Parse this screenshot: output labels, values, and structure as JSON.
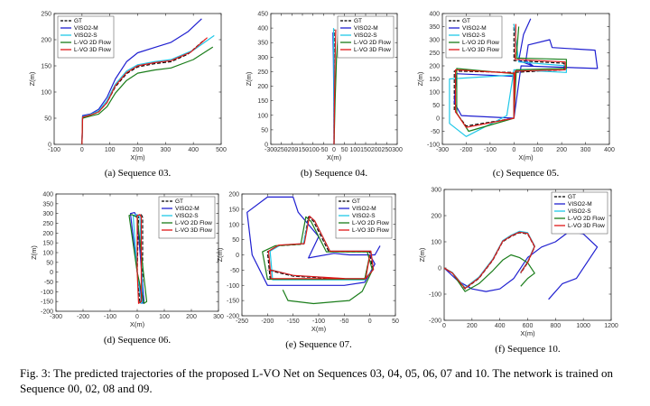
{
  "caption": "Fig. 3: The predicted trajectories of the proposed L-VO Net on Sequences 03, 04, 05, 06, 07 and 10. The network is trained on Sequence 00, 02, 08 and 09.",
  "colors": {
    "GT": "#000000",
    "VISO2-M": "#1f1fd0",
    "VISO2-S": "#20c8e8",
    "L-VO 2D Flow": "#1a7d1a",
    "L-VO 3D Flow": "#e01818"
  },
  "chart_data": [
    {
      "type": "line",
      "subcaption": "(a) Sequence 03.",
      "xlabel": "X(m)",
      "ylabel": "Z(m)",
      "xlim": [
        -100,
        500
      ],
      "ylim": [
        0,
        250
      ],
      "xticks": [
        -100,
        0,
        100,
        200,
        300,
        400,
        500
      ],
      "yticks": [
        0,
        50,
        100,
        150,
        200,
        250
      ],
      "legend_position": "top-left",
      "series": [
        {
          "name": "GT",
          "x": [
            0,
            2,
            30,
            60,
            90,
            120,
            160,
            200,
            260,
            320,
            380,
            440
          ],
          "y": [
            0,
            52,
            56,
            62,
            80,
            110,
            135,
            148,
            154,
            158,
            172,
            200
          ]
        },
        {
          "name": "VISO2-M",
          "x": [
            0,
            2,
            30,
            60,
            90,
            120,
            160,
            200,
            260,
            320,
            380,
            430
          ],
          "y": [
            0,
            55,
            58,
            67,
            90,
            125,
            158,
            175,
            185,
            195,
            215,
            240
          ]
        },
        {
          "name": "VISO2-S",
          "x": [
            0,
            2,
            30,
            60,
            90,
            120,
            160,
            200,
            260,
            320,
            400,
            475
          ],
          "y": [
            0,
            53,
            57,
            64,
            84,
            115,
            140,
            152,
            158,
            162,
            180,
            208
          ]
        },
        {
          "name": "L-VO 2D Flow",
          "x": [
            0,
            2,
            30,
            60,
            90,
            120,
            160,
            200,
            260,
            320,
            400,
            470
          ],
          "y": [
            0,
            50,
            54,
            58,
            72,
            98,
            122,
            136,
            142,
            146,
            162,
            186
          ]
        },
        {
          "name": "L-VO 3D Flow",
          "x": [
            0,
            2,
            30,
            60,
            90,
            120,
            160,
            200,
            260,
            320,
            390,
            450
          ],
          "y": [
            0,
            52,
            56,
            62,
            80,
            112,
            137,
            150,
            156,
            160,
            176,
            204
          ]
        }
      ]
    },
    {
      "type": "line",
      "subcaption": "(b) Sequence 04.",
      "xlabel": "X(m)",
      "ylabel": "Z(m)",
      "xlim": [
        -300,
        300
      ],
      "ylim": [
        0,
        450
      ],
      "xticks": [
        -300,
        -250,
        -200,
        -150,
        -100,
        -50,
        0,
        50,
        100,
        150,
        200,
        250,
        300
      ],
      "yticks": [
        0,
        50,
        100,
        150,
        200,
        250,
        300,
        350,
        400,
        450
      ],
      "legend_position": "top-right",
      "series": [
        {
          "name": "GT",
          "x": [
            0,
            0,
            1,
            1
          ],
          "y": [
            0,
            150,
            300,
            395
          ]
        },
        {
          "name": "VISO2-M",
          "x": [
            0,
            -1,
            -3,
            -5
          ],
          "y": [
            0,
            150,
            300,
            385
          ]
        },
        {
          "name": "VISO2-S",
          "x": [
            0,
            0,
            -1,
            -2
          ],
          "y": [
            0,
            150,
            300,
            400
          ]
        },
        {
          "name": "L-VO 2D Flow",
          "x": [
            0,
            5,
            12,
            20
          ],
          "y": [
            0,
            150,
            300,
            385
          ]
        },
        {
          "name": "L-VO 3D Flow",
          "x": [
            0,
            2,
            5,
            8
          ],
          "y": [
            0,
            150,
            300,
            395
          ]
        }
      ]
    },
    {
      "type": "line",
      "subcaption": "(c) Sequence 05.",
      "xlabel": "X(m)",
      "ylabel": "Z(m)",
      "xlim": [
        -300,
        400
      ],
      "ylim": [
        -100,
        400
      ],
      "xticks": [
        -300,
        -200,
        -100,
        0,
        100,
        200,
        300,
        400
      ],
      "yticks": [
        -100,
        -50,
        0,
        50,
        100,
        150,
        200,
        250,
        300,
        350,
        400
      ],
      "legend_position": "top-left",
      "series": [
        {
          "name": "GT",
          "x": [
            0,
            0,
            -250,
            -250,
            -200,
            0,
            0,
            210,
            210,
            0,
            0
          ],
          "y": [
            0,
            175,
            180,
            30,
            -30,
            0,
            175,
            185,
            210,
            220,
            360
          ]
        },
        {
          "name": "VISO2-M",
          "x": [
            0,
            0,
            -240,
            -250,
            -220,
            0,
            30,
            350,
            340,
            160,
            150,
            60,
            50,
            80,
            20,
            40,
            70
          ],
          "y": [
            0,
            160,
            170,
            60,
            10,
            0,
            200,
            190,
            260,
            270,
            300,
            280,
            220,
            200,
            220,
            320,
            380
          ]
        },
        {
          "name": "VISO2-S",
          "x": [
            0,
            0,
            -270,
            -270,
            -200,
            -30,
            0,
            220,
            220,
            20,
            0
          ],
          "y": [
            0,
            165,
            150,
            -20,
            -70,
            10,
            185,
            175,
            200,
            215,
            360
          ]
        },
        {
          "name": "L-VO 2D Flow",
          "x": [
            0,
            0,
            -240,
            -240,
            -190,
            0,
            10,
            220,
            220,
            10,
            20
          ],
          "y": [
            0,
            170,
            190,
            20,
            -50,
            0,
            185,
            190,
            225,
            230,
            350
          ]
        },
        {
          "name": "L-VO 3D Flow",
          "x": [
            0,
            0,
            -245,
            -245,
            -200,
            0,
            5,
            215,
            215,
            5,
            8
          ],
          "y": [
            0,
            172,
            185,
            25,
            -35,
            0,
            180,
            185,
            215,
            225,
            360
          ]
        }
      ]
    },
    {
      "type": "line",
      "subcaption": "(d) Sequence 06.",
      "xlabel": "X(m)",
      "ylabel": "Z(m)",
      "xlim": [
        -300,
        300
      ],
      "ylim": [
        -200,
        400
      ],
      "xticks": [
        -300,
        -200,
        -100,
        0,
        100,
        200,
        300
      ],
      "yticks": [
        -200,
        -150,
        -100,
        -50,
        0,
        50,
        100,
        150,
        200,
        250,
        300,
        350,
        400
      ],
      "legend_position": "top-right",
      "series": [
        {
          "name": "GT",
          "x": [
            0,
            5,
            15,
            20,
            20,
            10,
            0
          ],
          "y": [
            0,
            290,
            295,
            280,
            -150,
            -160,
            0
          ]
        },
        {
          "name": "VISO2-M",
          "x": [
            0,
            -25,
            -10,
            0,
            25,
            20,
            0
          ],
          "y": [
            0,
            300,
            305,
            280,
            -150,
            -160,
            0
          ]
        },
        {
          "name": "VISO2-S",
          "x": [
            0,
            -15,
            0,
            10,
            20,
            15,
            0
          ],
          "y": [
            0,
            290,
            295,
            280,
            -150,
            -160,
            0
          ]
        },
        {
          "name": "L-VO 2D Flow",
          "x": [
            0,
            -30,
            -20,
            0,
            35,
            25,
            0
          ],
          "y": [
            0,
            290,
            295,
            280,
            -150,
            -160,
            0
          ]
        },
        {
          "name": "L-VO 3D Flow",
          "x": [
            0,
            0,
            10,
            15,
            15,
            5,
            0
          ],
          "y": [
            0,
            290,
            295,
            280,
            -150,
            -160,
            0
          ]
        }
      ]
    },
    {
      "type": "line",
      "subcaption": "(e) Sequence 07.",
      "xlabel": "X(m)",
      "ylabel": "Z(m)",
      "xlim": [
        -250,
        50
      ],
      "ylim": [
        -200,
        200
      ],
      "xticks": [
        -250,
        -200,
        -150,
        -100,
        -50,
        0,
        50
      ],
      "yticks": [
        -200,
        -150,
        -100,
        -50,
        0,
        50,
        100,
        150,
        200
      ],
      "legend_position": "top-right",
      "series": [
        {
          "name": "GT",
          "x": [
            0,
            -10,
            -195,
            -200,
            -180,
            -130,
            -120,
            -110,
            -80,
            -50,
            0,
            5,
            -10,
            -50,
            -150,
            -200
          ],
          "y": [
            0,
            -80,
            -80,
            10,
            30,
            35,
            125,
            110,
            10,
            10,
            10,
            -50,
            -80,
            -80,
            -70,
            -50
          ]
        },
        {
          "name": "VISO2-M",
          "x": [
            0,
            10,
            -10,
            -50,
            -200,
            -230,
            -240,
            -200,
            -150,
            -140,
            -100,
            -120,
            -70,
            -40,
            10,
            20
          ],
          "y": [
            0,
            -30,
            -90,
            -100,
            -100,
            0,
            140,
            190,
            190,
            140,
            60,
            -10,
            5,
            0,
            0,
            30
          ]
        },
        {
          "name": "VISO2-S",
          "x": [
            0,
            -10,
            -190,
            -195,
            -175,
            -130,
            -118,
            -108,
            -78,
            -48,
            2,
            7,
            -10,
            -50,
            -150,
            -195
          ],
          "y": [
            0,
            -82,
            -82,
            12,
            32,
            37,
            127,
            112,
            12,
            12,
            12,
            -48,
            -78,
            -78,
            -68,
            -48
          ]
        },
        {
          "name": "L-VO 2D Flow",
          "x": [
            0,
            -10,
            -200,
            -210,
            -185,
            -135,
            -125,
            -115,
            -85,
            -55,
            -5,
            5,
            -15,
            -40,
            -110,
            -160,
            -170
          ],
          "y": [
            0,
            -80,
            -80,
            10,
            30,
            35,
            125,
            110,
            10,
            10,
            10,
            -50,
            -120,
            -150,
            -160,
            -150,
            -115
          ]
        },
        {
          "name": "L-VO 3D Flow",
          "x": [
            0,
            -8,
            -193,
            -198,
            -178,
            -128,
            -118,
            -108,
            -78,
            -48,
            2,
            7,
            -8,
            -48,
            -148,
            -198
          ],
          "y": [
            0,
            -78,
            -78,
            12,
            32,
            37,
            127,
            112,
            12,
            12,
            12,
            -48,
            -78,
            -78,
            -68,
            -48
          ]
        }
      ]
    },
    {
      "type": "line",
      "subcaption": "(f) Sequence 10.",
      "xlabel": "X(m)",
      "ylabel": "Z(m)",
      "xlim": [
        0,
        1200
      ],
      "ylim": [
        -200,
        300
      ],
      "xticks": [
        0,
        200,
        400,
        600,
        800,
        1000,
        1200
      ],
      "yticks": [
        -200,
        -100,
        0,
        100,
        200,
        300
      ],
      "legend_position": "top-right",
      "series": [
        {
          "name": "GT",
          "x": [
            0,
            60,
            150,
            250,
            350,
            420,
            480,
            540,
            600,
            650,
            600,
            550
          ],
          "y": [
            0,
            -20,
            -80,
            -40,
            30,
            100,
            120,
            135,
            130,
            80,
            20,
            -20
          ]
        },
        {
          "name": "VISO2-M",
          "x": [
            0,
            100,
            200,
            300,
            400,
            500,
            600,
            700,
            800,
            900,
            1000,
            1100,
            1050,
            950,
            850,
            750
          ],
          "y": [
            0,
            -50,
            -80,
            -90,
            -80,
            -40,
            40,
            80,
            100,
            140,
            130,
            80,
            40,
            -40,
            -60,
            -120
          ]
        },
        {
          "name": "VISO2-S",
          "x": [
            0,
            60,
            150,
            250,
            350,
            420,
            480,
            540,
            600,
            650,
            600,
            550
          ],
          "y": [
            0,
            -18,
            -75,
            -35,
            35,
            105,
            125,
            140,
            135,
            85,
            25,
            -15
          ]
        },
        {
          "name": "L-VO 2D Flow",
          "x": [
            0,
            60,
            150,
            250,
            350,
            420,
            480,
            540,
            600,
            650,
            600,
            550
          ],
          "y": [
            0,
            -20,
            -90,
            -60,
            -10,
            30,
            50,
            40,
            20,
            -20,
            -40,
            -70
          ]
        },
        {
          "name": "L-VO 3D Flow",
          "x": [
            0,
            60,
            150,
            250,
            350,
            420,
            480,
            540,
            600,
            650,
            600,
            550
          ],
          "y": [
            0,
            -20,
            -78,
            -38,
            32,
            102,
            122,
            137,
            132,
            82,
            22,
            -18
          ]
        }
      ]
    }
  ]
}
